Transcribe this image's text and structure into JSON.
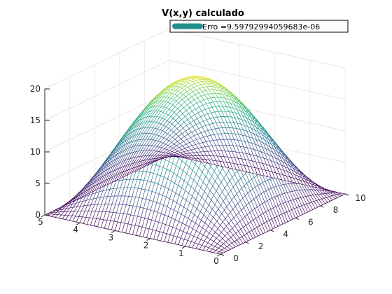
{
  "chart_data": {
    "type": "surface",
    "title": "V(x,y) calculado",
    "legend": {
      "label": "Erro =9.59792994059683e-06",
      "color": "#21908C",
      "placement": "top-right"
    },
    "function": "20*sin(pi*x/5)*sin(pi*y/10)",
    "x_range": [
      0,
      5
    ],
    "y_range": [
      0,
      10
    ],
    "z_range": [
      0,
      20
    ],
    "peak": {
      "x": 2.5,
      "y": 5,
      "z": 20
    },
    "mesh": {
      "nx": 50,
      "ny": 50
    },
    "colormap": "viridis",
    "x_ticks": [
      0,
      1,
      2,
      3,
      4,
      5
    ],
    "y_ticks": [
      0,
      2,
      4,
      6,
      8,
      10
    ],
    "z_ticks": [
      0,
      5,
      10,
      15,
      20
    ],
    "grid": true
  }
}
